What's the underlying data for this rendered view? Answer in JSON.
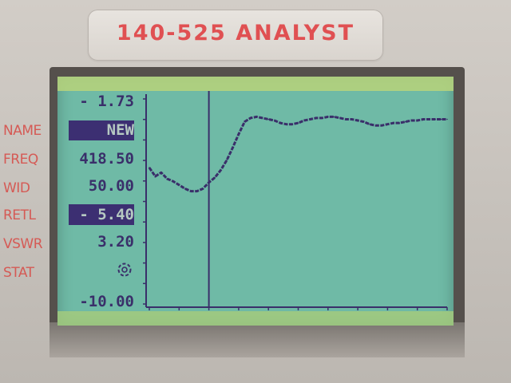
{
  "device": {
    "model_label": "140-525 ANALYST"
  },
  "side_labels": [
    {
      "id": "name",
      "text": "NAME"
    },
    {
      "id": "freq",
      "text": "FREQ"
    },
    {
      "id": "wid",
      "text": "WID"
    },
    {
      "id": "retl",
      "text": "RETL"
    },
    {
      "id": "vswr",
      "text": "VSWR"
    },
    {
      "id": "stat",
      "text": "STAT"
    }
  ],
  "screen": {
    "y_top_label": "- 1.73",
    "y_bottom_label": "-10.00",
    "readings": {
      "name": "NEW",
      "freq": "418.50",
      "wid": "50.00",
      "retl": "- 5.40",
      "vswr": "3.20"
    },
    "stat_icon": "busy-spinner-icon",
    "colors": {
      "lcd_background": "#6fbaa6",
      "lcd_ink": "#3a2f6a",
      "label_red": "#d55a55"
    }
  },
  "chart_data": {
    "type": "line",
    "title": "",
    "xlabel": "",
    "ylabel": "",
    "ylim": [
      -10.0,
      -1.73
    ],
    "x": [
      0,
      2,
      4,
      6,
      8,
      10,
      12,
      14,
      16,
      18,
      20,
      22,
      24,
      26,
      28,
      30,
      32,
      34,
      36,
      38,
      40,
      42,
      44,
      46,
      48,
      50,
      52,
      54,
      56,
      58,
      60,
      62,
      64,
      66,
      68,
      70,
      72,
      74,
      76,
      78,
      80,
      82,
      84,
      86,
      88,
      90,
      92,
      94,
      96,
      98,
      100
    ],
    "series": [
      {
        "values": [
          -4.5,
          -4.85,
          -4.7,
          -4.95,
          -5.05,
          -5.2,
          -5.35,
          -5.45,
          -5.45,
          -5.35,
          -5.1,
          -4.9,
          -4.6,
          -4.2,
          -3.7,
          -3.15,
          -2.65,
          -2.5,
          -2.45,
          -2.5,
          -2.55,
          -2.6,
          -2.7,
          -2.75,
          -2.75,
          -2.7,
          -2.6,
          -2.55,
          -2.5,
          -2.5,
          -2.45,
          -2.45,
          -2.5,
          -2.55,
          -2.55,
          -2.6,
          -2.65,
          -2.75,
          -2.8,
          -2.8,
          -2.75,
          -2.7,
          -2.7,
          -2.65,
          -2.6,
          -2.6,
          -2.55,
          -2.55,
          -2.55,
          -2.55,
          -2.55
        ]
      }
    ],
    "markers": [
      {
        "x": 20
      }
    ],
    "grid": false
  }
}
